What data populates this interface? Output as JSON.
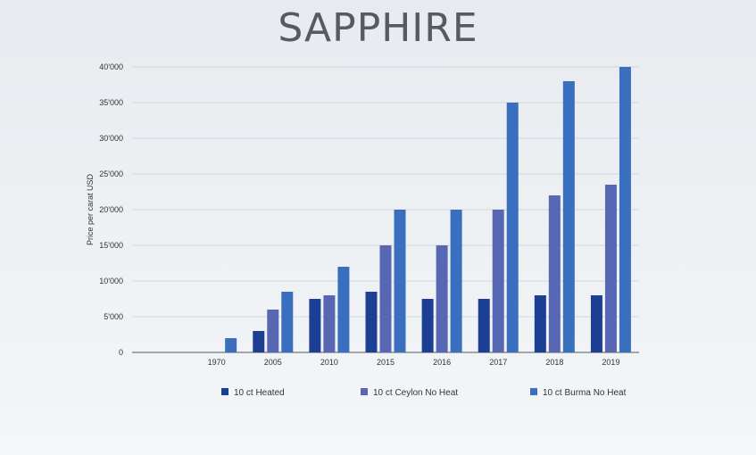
{
  "page_title": "SAPPHIRE",
  "chart_data": {
    "type": "bar",
    "title": "SAPPHIRE",
    "xlabel": "",
    "ylabel": "Price per carat USD",
    "ylim": [
      0,
      40000
    ],
    "yticks": [
      0,
      5000,
      10000,
      15000,
      20000,
      25000,
      30000,
      35000,
      40000
    ],
    "ytick_labels": [
      "0",
      "5'000",
      "10'000",
      "15'000",
      "20'000",
      "25'000",
      "30'000",
      "35'000",
      "40'000"
    ],
    "categories": [
      "",
      "1970",
      "2005",
      "2010",
      "2015",
      "2016",
      "2017",
      "2018",
      "2019"
    ],
    "grid": true,
    "legend_position": "bottom",
    "series": [
      {
        "name": "10 ct Heated",
        "color": "#1c3f94",
        "values": [
          null,
          null,
          3000,
          7500,
          8500,
          7500,
          7500,
          8000,
          8000
        ]
      },
      {
        "name": "10 ct Ceylon No Heat",
        "color": "#5867b3",
        "values": [
          null,
          null,
          6000,
          8000,
          15000,
          15000,
          20000,
          22000,
          23500
        ]
      },
      {
        "name": "10 ct Burma No Heat",
        "color": "#3a6fc0",
        "values": [
          null,
          2000,
          8500,
          12000,
          20000,
          20000,
          35000,
          38000,
          40000
        ]
      }
    ]
  }
}
